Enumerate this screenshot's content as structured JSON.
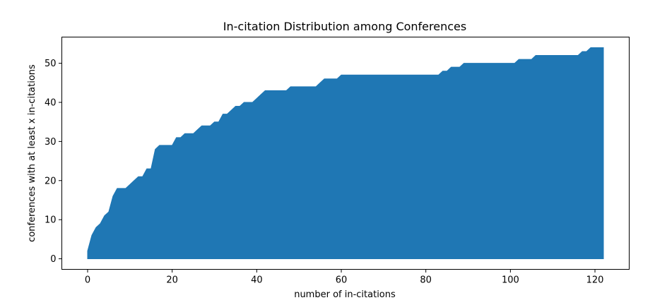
{
  "chart_data": {
    "type": "area",
    "title": "In-citation Distribution among Conferences",
    "xlabel": "number of in-citations",
    "ylabel": "conferences with at least x in-citations",
    "xlim": [
      -6.1,
      128.1
    ],
    "ylim": [
      -2.7,
      56.7
    ],
    "xticks": [
      0,
      20,
      40,
      60,
      80,
      100,
      120
    ],
    "yticks": [
      0,
      10,
      20,
      30,
      40,
      50
    ],
    "grid": false,
    "series": [
      {
        "color": "#1f77b4",
        "x": [
          0,
          0,
          1,
          2,
          3,
          4,
          5,
          6,
          7,
          8,
          9,
          10,
          11,
          12,
          13,
          14,
          15,
          16,
          17,
          18,
          19,
          20,
          21,
          22,
          23,
          24,
          25,
          26,
          27,
          28,
          29,
          30,
          31,
          32,
          33,
          34,
          35,
          36,
          37,
          38,
          39,
          40,
          41,
          42,
          43,
          44,
          45,
          46,
          47,
          48,
          49,
          50,
          51,
          52,
          53,
          54,
          55,
          56,
          57,
          58,
          59,
          60,
          61,
          62,
          63,
          64,
          65,
          66,
          67,
          68,
          69,
          70,
          71,
          72,
          73,
          74,
          75,
          76,
          77,
          78,
          79,
          80,
          81,
          82,
          83,
          84,
          85,
          86,
          87,
          88,
          89,
          90,
          91,
          92,
          93,
          94,
          95,
          96,
          97,
          98,
          99,
          100,
          101,
          102,
          103,
          104,
          105,
          106,
          107,
          108,
          109,
          110,
          111,
          112,
          113,
          114,
          115,
          116,
          117,
          118,
          119,
          120,
          121,
          122
        ],
        "y": [
          0,
          2,
          6,
          8,
          9,
          11,
          12,
          16,
          18,
          18,
          18,
          19,
          20,
          21,
          21,
          23,
          23,
          28,
          29,
          29,
          29,
          29,
          31,
          31,
          32,
          32,
          32,
          33,
          34,
          34,
          34,
          35,
          35,
          37,
          37,
          38,
          39,
          39,
          40,
          40,
          40,
          41,
          42,
          43,
          43,
          43,
          43,
          43,
          43,
          44,
          44,
          44,
          44,
          44,
          44,
          44,
          45,
          46,
          46,
          46,
          46,
          47,
          47,
          47,
          47,
          47,
          47,
          47,
          47,
          47,
          47,
          47,
          47,
          47,
          47,
          47,
          47,
          47,
          47,
          47,
          47,
          47,
          47,
          47,
          47,
          48,
          48,
          49,
          49,
          49,
          50,
          50,
          50,
          50,
          50,
          50,
          50,
          50,
          50,
          50,
          50,
          50,
          50,
          51,
          51,
          51,
          51,
          52,
          52,
          52,
          52,
          52,
          52,
          52,
          52,
          52,
          52,
          52,
          53,
          53,
          54,
          54,
          54,
          54
        ]
      }
    ]
  }
}
